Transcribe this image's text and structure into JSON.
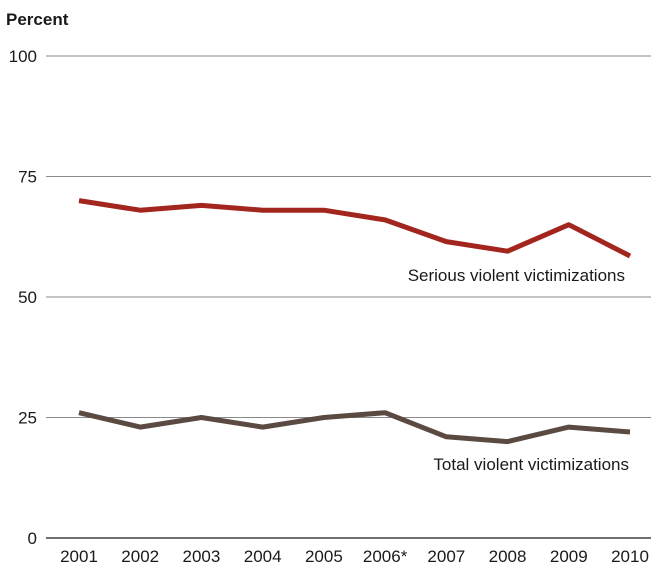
{
  "chart_data": {
    "type": "line",
    "ylabel": "Percent",
    "ylim": [
      0,
      100
    ],
    "yticks": [
      0,
      25,
      50,
      75,
      100
    ],
    "categories": [
      "2001",
      "2002",
      "2003",
      "2004",
      "2005",
      "2006*",
      "2007",
      "2008",
      "2009",
      "2010"
    ],
    "grid": true,
    "series": [
      {
        "name": "Serious violent victimizations",
        "color": "#a3261e",
        "values": [
          70,
          68,
          69,
          68,
          68,
          66,
          61.5,
          59.5,
          65,
          58.5
        ]
      },
      {
        "name": "Total violent victimizations",
        "color": "#5a4a42",
        "values": [
          26,
          23,
          25,
          23,
          25,
          26,
          21,
          20,
          23,
          22
        ]
      }
    ]
  }
}
